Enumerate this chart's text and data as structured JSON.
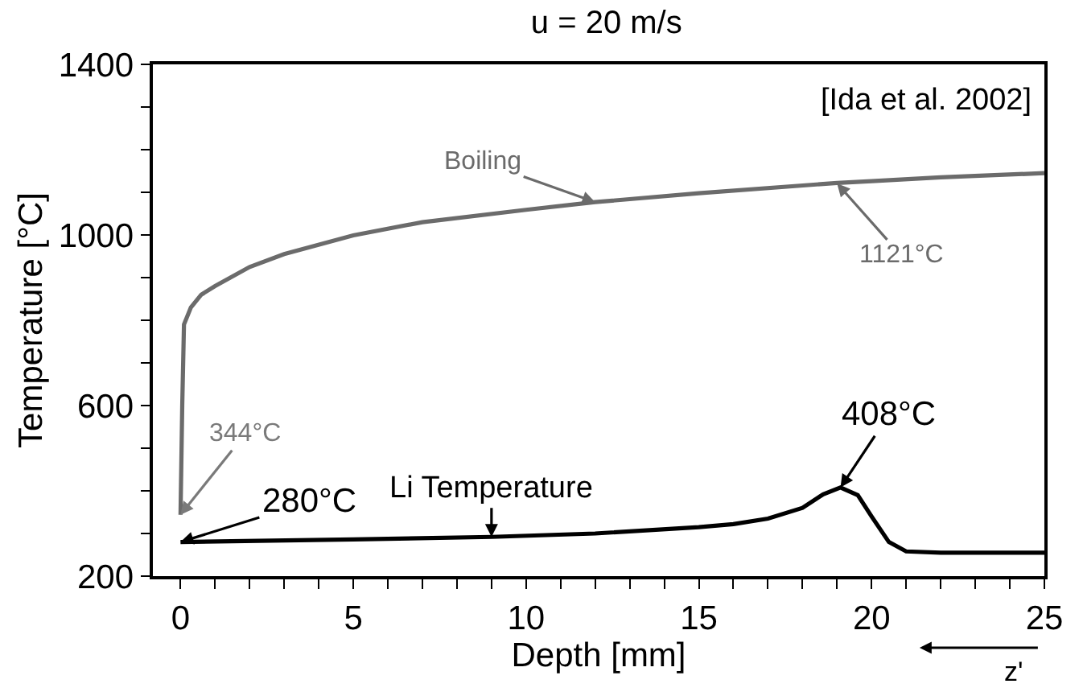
{
  "chart_data": {
    "type": "line",
    "title": "u = 20 m/s",
    "xlabel": "Depth [mm]",
    "ylabel": "Temperature [°C]",
    "xlim": [
      -0.8,
      25
    ],
    "ylim": [
      200,
      1400
    ],
    "xticks": [
      0,
      {
        "value": 1,
        "label": null
      },
      {
        "value": 2,
        "label": null
      },
      {
        "value": 3,
        "label": null
      },
      {
        "value": 4,
        "label": null
      },
      5,
      {
        "value": 6,
        "label": null
      },
      {
        "value": 7,
        "label": null
      },
      {
        "value": 8,
        "label": null
      },
      {
        "value": 9,
        "label": null
      },
      10,
      {
        "value": 11,
        "label": null
      },
      {
        "value": 12,
        "label": null
      },
      {
        "value": 13,
        "label": null
      },
      {
        "value": 14,
        "label": null
      },
      15,
      {
        "value": 16,
        "label": null
      },
      {
        "value": 17,
        "label": null
      },
      {
        "value": 18,
        "label": null
      },
      {
        "value": 19,
        "label": null
      },
      20,
      {
        "value": 21,
        "label": null
      },
      {
        "value": 22,
        "label": null
      },
      {
        "value": 23,
        "label": null
      },
      {
        "value": 24,
        "label": null
      },
      25
    ],
    "yticks": [
      200,
      {
        "value": 300,
        "label": null
      },
      {
        "value": 400,
        "label": null
      },
      {
        "value": 500,
        "label": null
      },
      600,
      {
        "value": 700,
        "label": null
      },
      {
        "value": 800,
        "label": null
      },
      {
        "value": 900,
        "label": null
      },
      1000,
      {
        "value": 1100,
        "label": null
      },
      {
        "value": 1200,
        "label": null
      },
      {
        "value": 1300,
        "label": null
      },
      1400
    ],
    "marker": "none",
    "line_style": "solid",
    "series": [
      {
        "color": "#6b6b6b",
        "x": [
          0,
          0.05,
          0.1,
          0.3,
          0.6,
          1,
          2,
          3,
          5,
          7,
          10,
          12,
          15,
          19,
          20,
          22,
          25
        ],
        "values": [
          344,
          600,
          790,
          830,
          860,
          880,
          925,
          955,
          999,
          1030,
          1059,
          1077,
          1098,
          1122,
          1126,
          1135,
          1145
        ]
      },
      {
        "color": "#000000",
        "x": [
          0,
          5,
          9,
          12,
          15,
          16,
          17,
          18,
          18.6,
          19.1,
          19.6,
          20,
          20.5,
          21,
          22,
          25
        ],
        "values": [
          280,
          286,
          292,
          300,
          315,
          322,
          335,
          360,
          392,
          408,
          390,
          340,
          280,
          258,
          255,
          255
        ]
      }
    ],
    "annotations": [
      "[Ida et al. 2002]",
      {
        "text": "Boiling",
        "x": 12,
        "y": 1077
      },
      {
        "text": "1121°C",
        "x": 19,
        "y": 1121
      },
      {
        "text": "344°C",
        "x": 0,
        "y": 344
      },
      {
        "text": "280°C",
        "x": 0,
        "y": 280
      },
      {
        "text": "Li Temperature",
        "x": 9,
        "y": 292
      },
      {
        "text": "408°C",
        "x": 19.1,
        "y": 408
      },
      "z'"
    ]
  }
}
